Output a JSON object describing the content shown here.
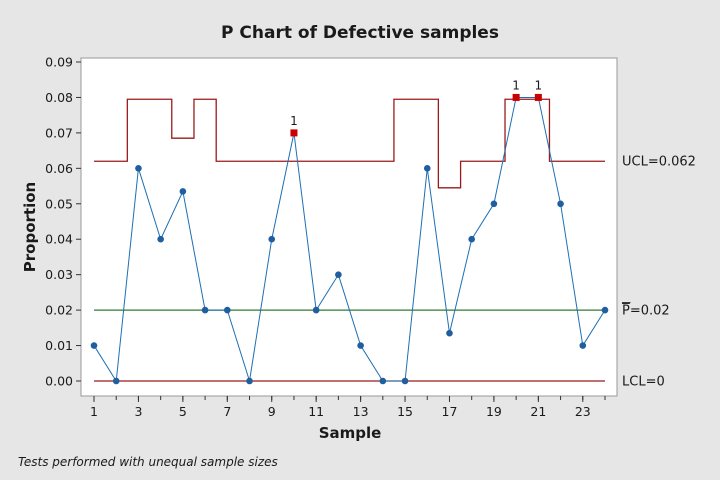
{
  "chart_data": {
    "type": "line",
    "title": "P Chart of Defective samples",
    "xlabel": "Sample",
    "ylabel": "Proportion",
    "footnote": "Tests performed with unequal sample sizes",
    "xlim": [
      1,
      24
    ],
    "ylim": [
      0,
      0.09
    ],
    "x_ticks": [
      1,
      3,
      5,
      7,
      9,
      11,
      13,
      15,
      17,
      19,
      21,
      23
    ],
    "x_tick_labels": [
      "1",
      "3",
      "5",
      "7",
      "9",
      "11",
      "13",
      "15",
      "17",
      "19",
      "21",
      "23"
    ],
    "y_ticks": [
      0,
      0.01,
      0.02,
      0.03,
      0.04,
      0.05,
      0.06,
      0.07,
      0.08,
      0.09
    ],
    "y_tick_labels": [
      "0.00",
      "0.01",
      "0.02",
      "0.03",
      "0.04",
      "0.05",
      "0.06",
      "0.07",
      "0.08",
      "0.09"
    ],
    "grid": false,
    "samples": [
      1,
      2,
      3,
      4,
      5,
      6,
      7,
      8,
      9,
      10,
      11,
      12,
      13,
      14,
      15,
      16,
      17,
      18,
      19,
      20,
      21,
      22,
      23,
      24
    ],
    "proportions": [
      0.01,
      0.0,
      0.06,
      0.04,
      0.0535,
      0.02,
      0.02,
      0.0,
      0.04,
      0.07,
      0.02,
      0.03,
      0.01,
      0.0,
      0.0,
      0.06,
      0.0135,
      0.04,
      0.05,
      0.08,
      0.08,
      0.05,
      0.01,
      0.02
    ],
    "ucl_values": [
      0.062,
      0.062,
      0.0795,
      0.0795,
      0.0685,
      0.0795,
      0.062,
      0.062,
      0.062,
      0.062,
      0.062,
      0.062,
      0.062,
      0.062,
      0.0795,
      0.0795,
      0.0545,
      0.062,
      0.062,
      0.0795,
      0.0795,
      0.062,
      0.062,
      0.062
    ],
    "center_line": 0.02,
    "lcl": 0,
    "out_of_control": [
      {
        "sample": 10,
        "flag": "1"
      },
      {
        "sample": 20,
        "flag": "1"
      },
      {
        "sample": 21,
        "flag": "1"
      }
    ],
    "limit_labels": {
      "ucl": "UCL=0.062",
      "center_symbol": "P",
      "center_value": "=0.02",
      "lcl": "LCL=0"
    },
    "colors": {
      "background": "#e6e6e6",
      "plot_background": "#ffffff",
      "data_line": "#1f6fb2",
      "data_point": "#1f5fa0",
      "out_of_control_point": "#cc0000",
      "limit_line": "#9b1b1b",
      "center_line": "#2e7d32"
    }
  }
}
